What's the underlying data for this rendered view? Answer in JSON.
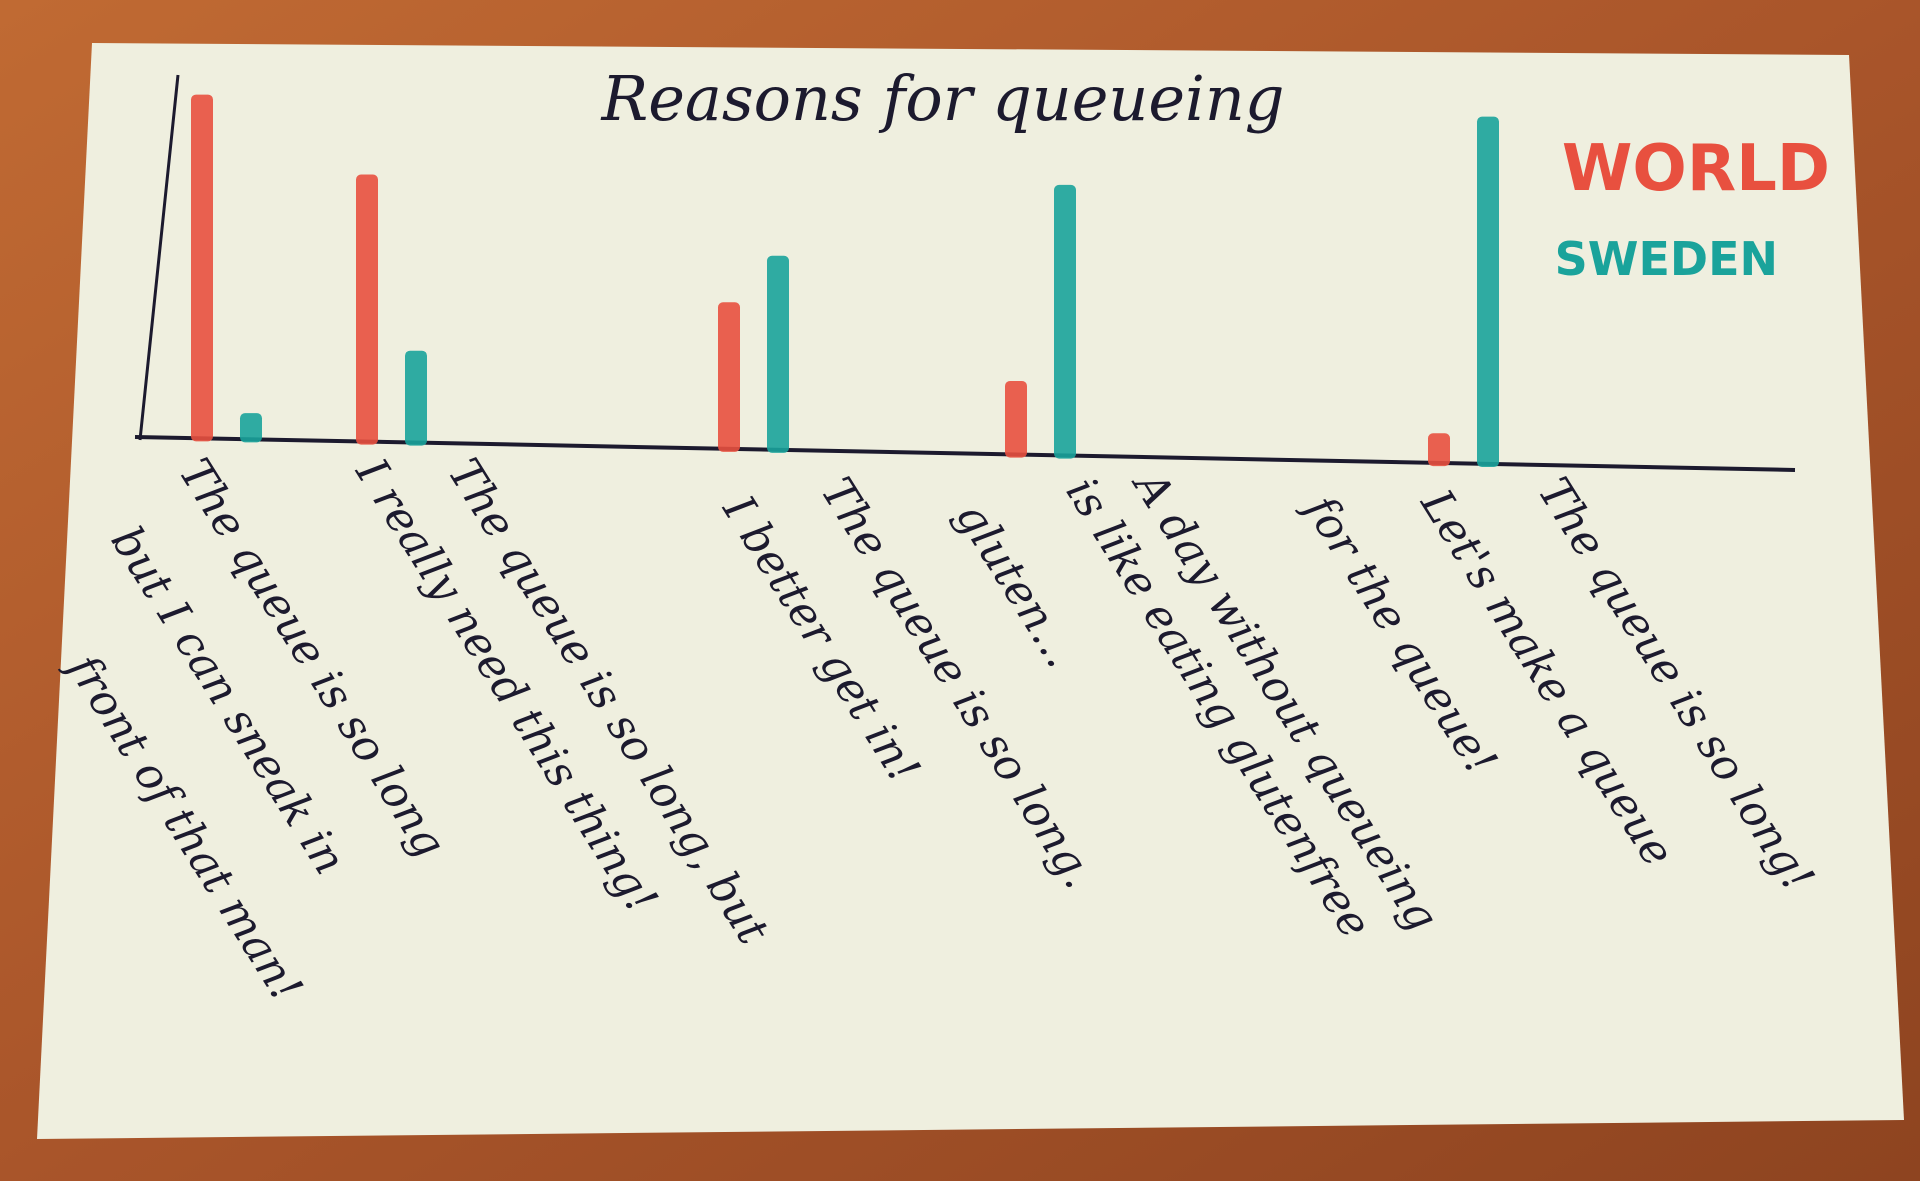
{
  "chart_data": {
    "type": "bar",
    "title": "Reasons for queueing",
    "categories": [
      [
        "The queue is so long",
        "but I can sneak in",
        "front of that man!"
      ],
      [
        "I really need this thing!"
      ],
      [
        "The queue is so long, but",
        "I better get in!"
      ],
      [
        "The queue is so long.",
        "A day without queueing",
        "is like eating glutenfree",
        "gluten..."
      ],
      [
        "Let's make a queue",
        "for the queue!",
        "The queue is so long!"
      ]
    ],
    "series": [
      {
        "name": "WORLD",
        "color": "#e8503f",
        "values": [
          95,
          74,
          41,
          21,
          9
        ]
      },
      {
        "name": "SWEDEN",
        "color": "#1aa39b",
        "values": [
          8,
          26,
          54,
          75,
          96
        ]
      }
    ],
    "ylim": [
      0,
      100
    ],
    "legend": "upper right"
  }
}
